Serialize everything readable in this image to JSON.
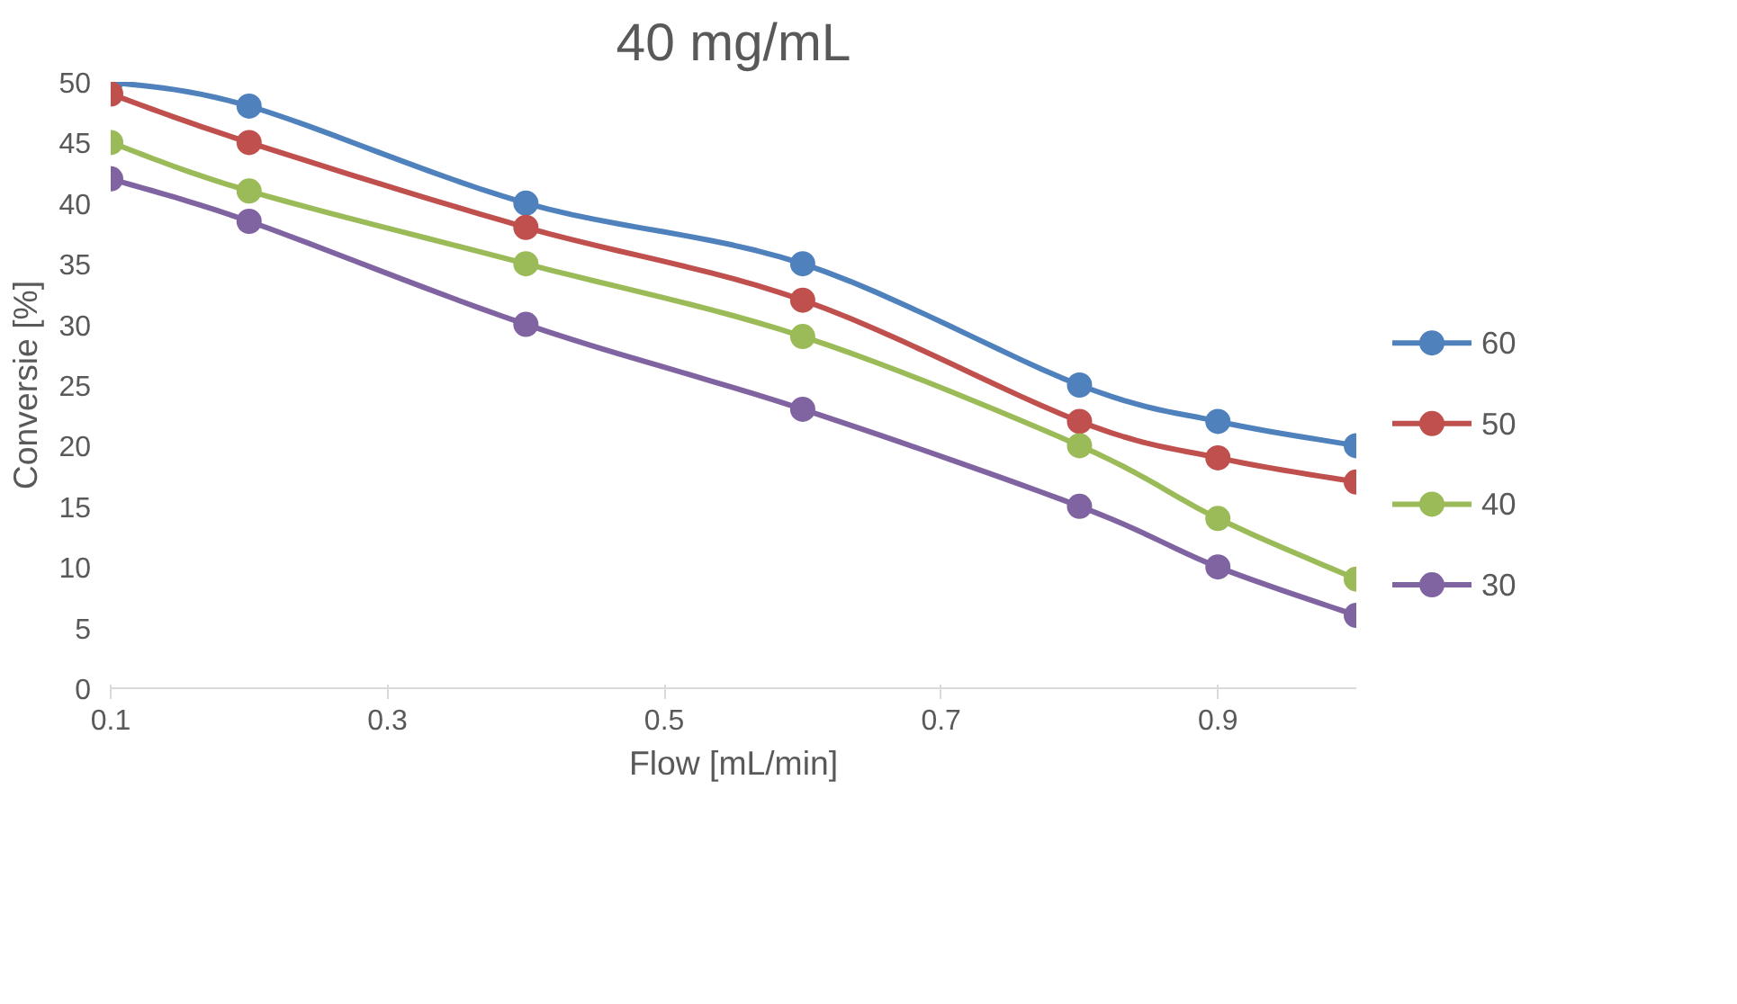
{
  "chart_data": {
    "type": "line",
    "title": "40 mg/mL",
    "xlabel": "Flow [mL/min]",
    "ylabel": "Conversie [%]",
    "x": [
      0.1,
      0.2,
      0.4,
      0.6,
      0.8,
      0.9,
      1.0
    ],
    "series": [
      {
        "name": "60",
        "color": "#4f81bd",
        "values": [
          50,
          48,
          40,
          35,
          25,
          22,
          20
        ]
      },
      {
        "name": "50",
        "color": "#c0504d",
        "values": [
          49,
          45,
          38,
          32,
          22,
          19,
          17
        ]
      },
      {
        "name": "40",
        "color": "#9bbb59",
        "values": [
          45,
          41,
          35,
          29,
          20,
          14,
          9
        ]
      },
      {
        "name": "30",
        "color": "#8064a2",
        "values": [
          42,
          38.5,
          30,
          23,
          15,
          10,
          6
        ]
      }
    ],
    "xlim": [
      0.1,
      1.0
    ],
    "xticks": [
      0.1,
      0.3,
      0.5,
      0.7,
      0.9
    ],
    "ylim": [
      0,
      50
    ],
    "yticks": [
      0,
      5,
      10,
      15,
      20,
      25,
      30,
      35,
      40,
      45,
      50
    ],
    "grid": false,
    "legend": "right",
    "marker": "circle",
    "line_style": "solid"
  }
}
